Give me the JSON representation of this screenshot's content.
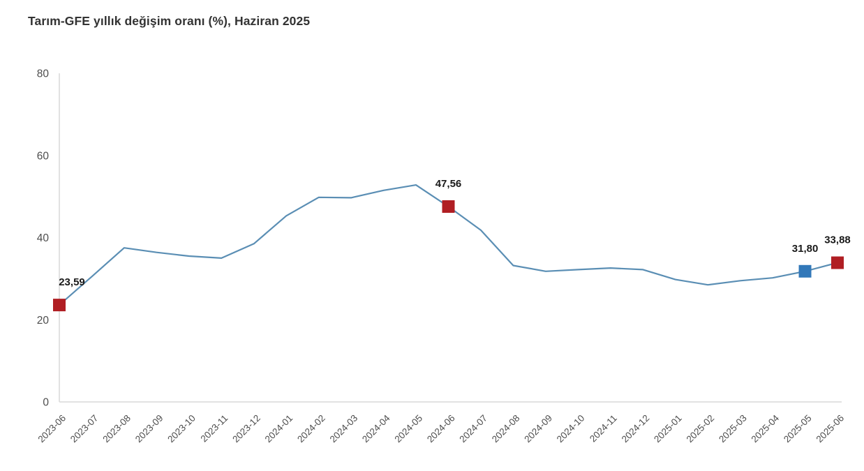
{
  "title": "Tarım-GFE yıllık değişim oranı (%), Haziran 2025",
  "colors": {
    "line": "#5a8eb4",
    "marker_red": "#b01e23",
    "marker_blue": "#3278b9",
    "axis": "#d9d9d9",
    "tick_label": "#4d4d4d",
    "data_label": "#1a1a1a"
  },
  "chart_data": {
    "type": "line",
    "title": "Tarım-GFE yıllık değişim oranı (%), Haziran 2025",
    "x": [
      "2023-06",
      "2023-07",
      "2023-08",
      "2023-09",
      "2023-10",
      "2023-11",
      "2023-12",
      "2024-01",
      "2024-02",
      "2024-03",
      "2024-04",
      "2024-05",
      "2024-06",
      "2024-07",
      "2024-08",
      "2024-09",
      "2024-10",
      "2024-11",
      "2024-12",
      "2025-01",
      "2025-02",
      "2025-03",
      "2025-04",
      "2025-05",
      "2025-06"
    ],
    "values": [
      23.59,
      30.5,
      37.5,
      36.4,
      35.5,
      35.0,
      38.5,
      45.3,
      49.8,
      49.7,
      51.5,
      52.8,
      47.56,
      41.8,
      33.2,
      31.8,
      32.2,
      32.6,
      32.2,
      29.8,
      28.5,
      29.5,
      30.2,
      31.8,
      33.88
    ],
    "xlabel": "",
    "ylabel": "",
    "ylim": [
      0,
      80
    ],
    "yticks": [
      0,
      20,
      40,
      60,
      80
    ],
    "grid": false,
    "legend": "none",
    "highlighted_points": [
      {
        "x": "2023-06",
        "value": 23.59,
        "label": "23,59",
        "marker": "red"
      },
      {
        "x": "2024-06",
        "value": 47.56,
        "label": "47,56",
        "marker": "red"
      },
      {
        "x": "2025-05",
        "value": 31.8,
        "label": "31,80",
        "marker": "blue"
      },
      {
        "x": "2025-06",
        "value": 33.88,
        "label": "33,88",
        "marker": "red"
      }
    ]
  }
}
